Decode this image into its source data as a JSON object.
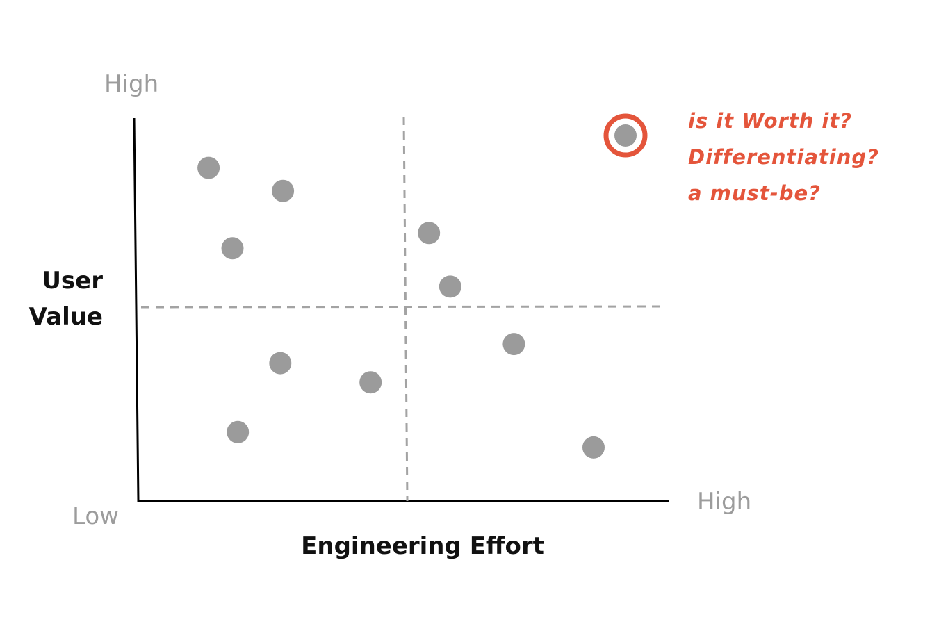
{
  "chart_data": {
    "type": "scatter",
    "title": "",
    "xlabel": "Engineering Effort",
    "ylabel_lines": [
      "User",
      "Value"
    ],
    "x_axis_ends": {
      "low": "Low",
      "high": "High"
    },
    "y_axis_ends": {
      "low": "Low",
      "high": "High"
    },
    "xlim": [
      0,
      100
    ],
    "ylim": [
      0,
      100
    ],
    "grid": false,
    "quadrant_dividers": {
      "x": 50,
      "y": 50
    },
    "points": [
      {
        "x": 13.5,
        "y": 87
      },
      {
        "x": 27.5,
        "y": 81
      },
      {
        "x": 18,
        "y": 66
      },
      {
        "x": 55,
        "y": 70
      },
      {
        "x": 59,
        "y": 56
      },
      {
        "x": 71,
        "y": 41
      },
      {
        "x": 27,
        "y": 36
      },
      {
        "x": 44,
        "y": 31
      },
      {
        "x": 19,
        "y": 18
      },
      {
        "x": 86,
        "y": 14
      }
    ],
    "highlight": {
      "legend_point": {
        "x": 92,
        "y": 96
      },
      "lines": [
        "is it Worth it?",
        "Differentiating?",
        "a must-be?"
      ]
    },
    "colors": {
      "point": "#9b9b9b",
      "axis": "#000000",
      "divider": "#a3a3a3",
      "accent": "#e4553b",
      "muted_label": "#9c9c9c"
    }
  }
}
